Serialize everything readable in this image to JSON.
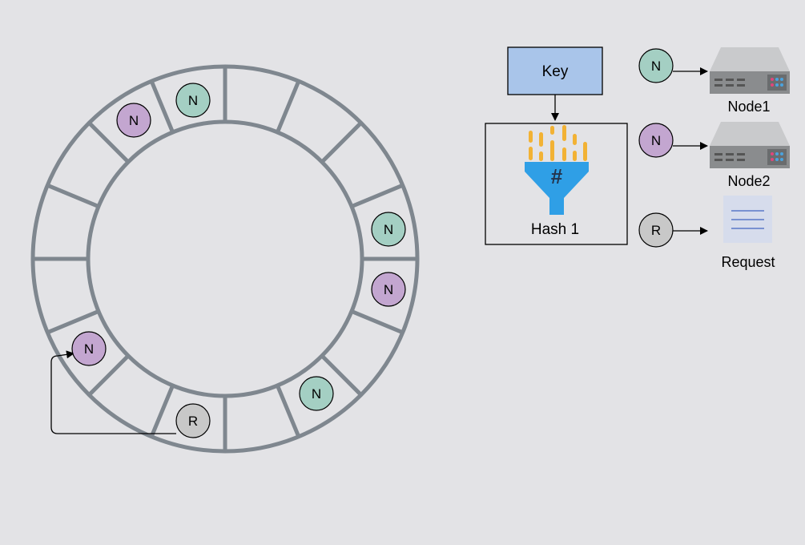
{
  "colors": {
    "background": "#e3e3e6",
    "ring": "#7f878f",
    "node_teal": "#a4cfc3",
    "node_purple": "#c3a6d0",
    "request_gray": "#c8c8c8",
    "key_fill": "#a9c5ea",
    "funnel_blue": "#2f9fe6",
    "funnel_bars": "#f2b234",
    "server_body": "#8a8c8e",
    "server_top": "#c9cacc",
    "doc_bg": "#d6dcec",
    "doc_lines": "#5a78c8"
  },
  "ring": {
    "segment_count": 16,
    "markers": [
      {
        "label": "N",
        "kind": "node",
        "color": "teal"
      },
      {
        "label": "N",
        "kind": "node",
        "color": "purple"
      },
      {
        "label": "N",
        "kind": "node",
        "color": "teal"
      },
      {
        "label": "N",
        "kind": "node",
        "color": "purple"
      },
      {
        "label": "N",
        "kind": "node",
        "color": "purple"
      },
      {
        "label": "N",
        "kind": "node",
        "color": "teal"
      },
      {
        "label": "R",
        "kind": "request",
        "color": "gray"
      }
    ]
  },
  "hash_panel": {
    "key_label": "Key",
    "hash_label": "Hash 1",
    "icon": "hash-funnel-icon"
  },
  "legend": [
    {
      "marker": "N",
      "marker_color": "teal",
      "icon": "server-icon",
      "label": "Node1"
    },
    {
      "marker": "N",
      "marker_color": "purple",
      "icon": "server-icon",
      "label": "Node2"
    },
    {
      "marker": "R",
      "marker_color": "gray",
      "icon": "document-icon",
      "label": "Request"
    }
  ]
}
